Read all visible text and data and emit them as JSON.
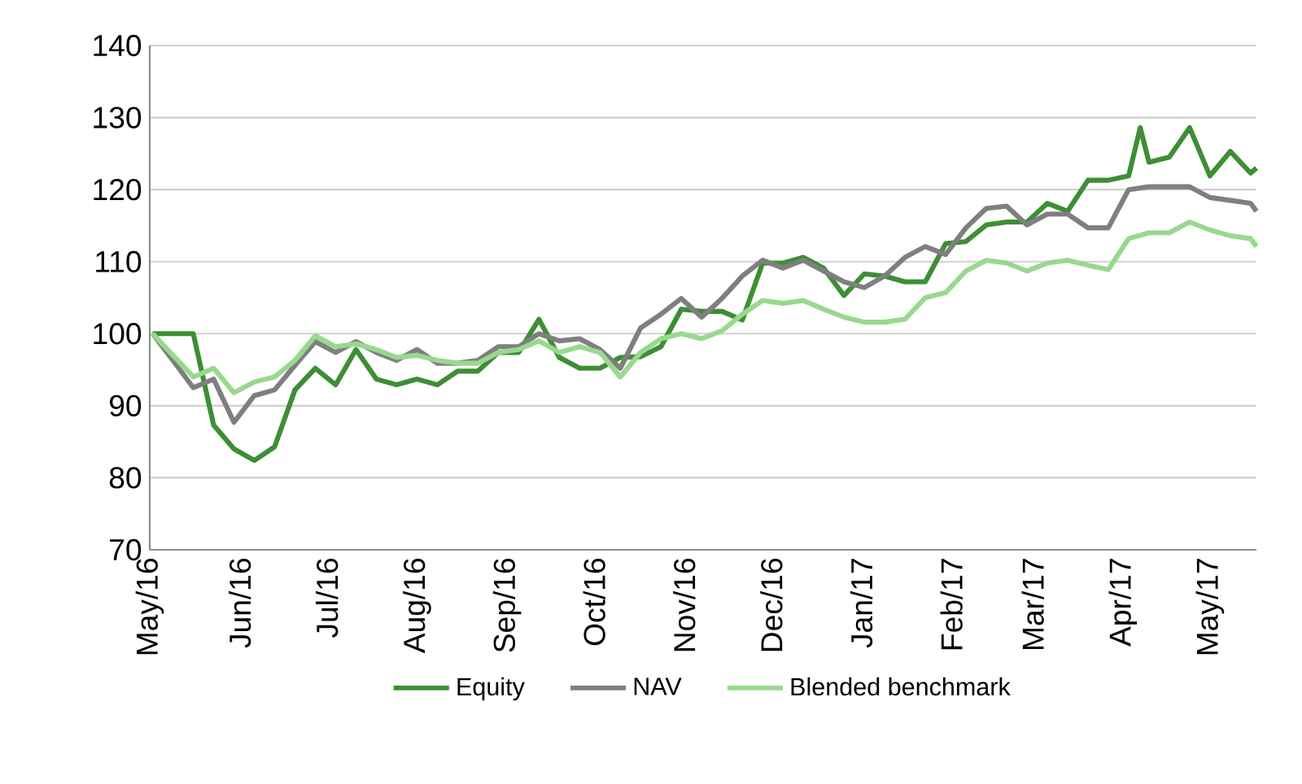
{
  "chart_data": {
    "type": "line",
    "xlim": [
      "2016-05-01",
      "2017-05-17"
    ],
    "xticks": [
      {
        "value": "2016-05-01",
        "label": "May/16"
      },
      {
        "value": "2016-06-01",
        "label": "Jun/16"
      },
      {
        "value": "2016-07-01",
        "label": "Jul/16"
      },
      {
        "value": "2016-08-01",
        "label": "Aug/16"
      },
      {
        "value": "2016-09-01",
        "label": "Sep/16"
      },
      {
        "value": "2016-10-01",
        "label": "Oct/16"
      },
      {
        "value": "2016-11-01",
        "label": "Nov/16"
      },
      {
        "value": "2016-12-01",
        "label": "Dec/16"
      },
      {
        "value": "2017-01-01",
        "label": "Jan/17"
      },
      {
        "value": "2017-02-01",
        "label": "Feb/17"
      },
      {
        "value": "2017-03-01",
        "label": "Mar/17"
      },
      {
        "value": "2017-04-01",
        "label": "Apr/17"
      },
      {
        "value": "2017-05-01",
        "label": "May/17"
      }
    ],
    "ylim": [
      70,
      140
    ],
    "yticks": [
      70,
      80,
      90,
      100,
      110,
      120,
      130,
      140
    ],
    "grid": "y",
    "legend": "bottom",
    "marker": "none",
    "line_style": "solid",
    "x": [
      "2016-05-02",
      "2016-05-09",
      "2016-05-16",
      "2016-05-23",
      "2016-05-30",
      "2016-06-06",
      "2016-06-13",
      "2016-06-20",
      "2016-06-27",
      "2016-07-04",
      "2016-07-11",
      "2016-07-18",
      "2016-07-25",
      "2016-08-01",
      "2016-08-08",
      "2016-08-15",
      "2016-08-22",
      "2016-08-29",
      "2016-09-05",
      "2016-09-12",
      "2016-09-19",
      "2016-09-26",
      "2016-10-03",
      "2016-10-10",
      "2016-10-17",
      "2016-10-24",
      "2016-10-31",
      "2016-11-07",
      "2016-11-14",
      "2016-11-21",
      "2016-11-28",
      "2016-12-05",
      "2016-12-12",
      "2016-12-19",
      "2016-12-26",
      "2017-01-02",
      "2017-01-09",
      "2017-01-16",
      "2017-01-23",
      "2017-01-30",
      "2017-02-06",
      "2017-02-13",
      "2017-02-20",
      "2017-02-27",
      "2017-03-06",
      "2017-03-13",
      "2017-03-20",
      "2017-03-27",
      "2017-04-03",
      "2017-04-10",
      "2017-04-17",
      "2017-04-24",
      "2017-05-01",
      "2017-05-08",
      "2017-05-15",
      "2017-05-17"
    ],
    "series": [
      {
        "name": "Equity",
        "color": "#3e8e35",
        "x": [
          "2016-05-02",
          "2016-05-09",
          "2016-05-16",
          "2016-05-23",
          "2016-05-30",
          "2016-06-06",
          "2016-06-13",
          "2016-06-20",
          "2016-06-27",
          "2016-07-04",
          "2016-07-11",
          "2016-07-18",
          "2016-07-25",
          "2016-08-01",
          "2016-08-08",
          "2016-08-15",
          "2016-08-22",
          "2016-08-29",
          "2016-09-05",
          "2016-09-12",
          "2016-09-19",
          "2016-09-26",
          "2016-10-03",
          "2016-10-10",
          "2016-10-17",
          "2016-10-24",
          "2016-10-31",
          "2016-11-07",
          "2016-11-14",
          "2016-11-21",
          "2016-11-28",
          "2016-12-05",
          "2016-12-12",
          "2016-12-19",
          "2016-12-26",
          "2017-01-02",
          "2017-01-09",
          "2017-01-16",
          "2017-01-23",
          "2017-01-30",
          "2017-02-06",
          "2017-02-13",
          "2017-02-20",
          "2017-02-27",
          "2017-03-06",
          "2017-03-13",
          "2017-03-20",
          "2017-03-27",
          "2017-04-03",
          "2017-04-07",
          "2017-04-10",
          "2017-04-17",
          "2017-04-24",
          "2017-05-01",
          "2017-05-08",
          "2017-05-15",
          "2017-05-17"
        ],
        "values": [
          100,
          100,
          100,
          87.3,
          84,
          82.4,
          84.3,
          92.2,
          95.2,
          92.9,
          97.8,
          93.7,
          92.9,
          93.7,
          92.9,
          94.8,
          94.8,
          97.4,
          97.4,
          102,
          96.7,
          95.2,
          95.2,
          96.7,
          96.8,
          98.2,
          103.4,
          103.1,
          103.1,
          101.9,
          109.8,
          109.8,
          110.6,
          109.1,
          105.3,
          108.3,
          108,
          107.2,
          107.2,
          112.5,
          112.8,
          115.1,
          115.5,
          115.5,
          118.1,
          117,
          121.3,
          121.3,
          121.9,
          128.6,
          123.8,
          124.5,
          128.6,
          121.9,
          125.3,
          122.3,
          123
        ]
      },
      {
        "name": "NAV",
        "color": "#7f7f7f",
        "values": [
          100,
          96.3,
          92.5,
          93.7,
          87.7,
          91.4,
          92.2,
          95.6,
          98.9,
          97.4,
          98.9,
          97.4,
          96.3,
          97.8,
          95.9,
          95.9,
          96.3,
          98.2,
          98.2,
          100,
          99,
          99.3,
          97.8,
          95.2,
          100.8,
          102.7,
          104.9,
          102.3,
          104.9,
          108,
          110.2,
          109.1,
          110.2,
          108.7,
          107.2,
          106.4,
          108,
          110.6,
          112.1,
          111,
          114.7,
          117.4,
          117.7,
          115.1,
          116.6,
          116.6,
          114.7,
          114.7,
          120,
          120.4,
          120.4,
          120.4,
          118.9,
          118.5,
          118.1,
          117
        ]
      },
      {
        "name": "Blended benchmark",
        "color": "#98d98e",
        "values": [
          100,
          97,
          94,
          95.2,
          91.8,
          93.3,
          94,
          96.3,
          99.7,
          98.2,
          98.6,
          97.8,
          96.7,
          97,
          96.3,
          95.9,
          95.9,
          97.4,
          97.8,
          99,
          97.4,
          98.2,
          97.4,
          94,
          97.4,
          99.3,
          100,
          99.3,
          100.4,
          102.7,
          104.6,
          104.2,
          104.6,
          103.4,
          102.3,
          101.6,
          101.6,
          102,
          105,
          105.7,
          108.7,
          110.2,
          109.8,
          108.7,
          109.8,
          110.2,
          109.5,
          108.9,
          113.2,
          114,
          114,
          115.5,
          114.4,
          113.6,
          113.2,
          112.1
        ]
      }
    ]
  }
}
